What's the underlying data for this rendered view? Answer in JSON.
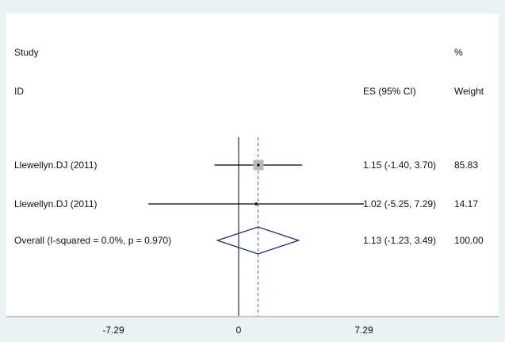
{
  "chart_data": {
    "type": "forest",
    "header": {
      "study_line1": "Study",
      "study_line2": "ID",
      "es_label": "ES (95% CI)",
      "weight_line1": "%",
      "weight_line2": "Weight"
    },
    "studies": [
      {
        "label": "Llewellyn.DJ (2011)",
        "es": 1.15,
        "lower": -1.4,
        "upper": 3.7,
        "es_text": "1.15 (-1.40, 3.70)",
        "weight_text": "85.83"
      },
      {
        "label": "Llewellyn.DJ (2011)",
        "es": 1.02,
        "lower": -5.25,
        "upper": 7.29,
        "es_text": "1.02 (-5.25, 7.29)",
        "weight_text": "14.17"
      }
    ],
    "overall": {
      "label": "Overall  (I-squared = 0.0%, p = 0.970)",
      "es": 1.13,
      "lower": -1.23,
      "upper": 3.49,
      "es_text": "1.13 (-1.23, 3.49)",
      "weight_text": "100.00"
    },
    "x_axis": {
      "ticks": [
        -7.29,
        0,
        7.29
      ],
      "tick_labels": [
        "-7.29",
        "0",
        "7.29"
      ]
    },
    "colors": {
      "background": "#eaf2f3",
      "panel": "#ffffff",
      "diamond": "#1f2a6b",
      "box": "#b8b8b8",
      "line": "#000000",
      "dashed": "#a0527a"
    }
  }
}
